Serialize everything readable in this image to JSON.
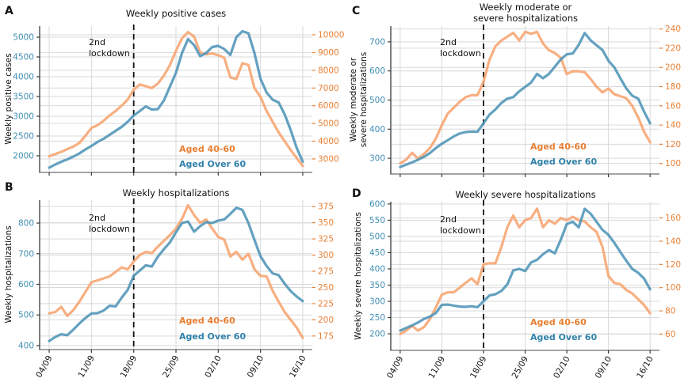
{
  "figure": {
    "background": "#ffffff",
    "grid_color": "#d9d9d9",
    "left_spine_color": "#3a3a3a",
    "bottom_spine_color": "#6e6e6e",
    "tick_mark_color": "#3a3a3a",
    "text_color": "#111111",
    "lockdown_line_color": "#111111",
    "annotation_text": "2nd\nlockdown",
    "x_tick_labels": [
      "04/09",
      "11/09",
      "18/09",
      "25/09",
      "02/10",
      "09/10",
      "16/10"
    ],
    "left_tick_label_color": "#3f8db3",
    "right_tick_label_color": "#e87f33",
    "legend": [
      {
        "label": "Aged 40-60",
        "text_color": "#e87f33"
      },
      {
        "label": "Aged Over 60",
        "text_color": "#2f81a9"
      }
    ],
    "series_line_colors": {
      "aged_40_60": "#f7a470",
      "aged_over_60": "#4e94b7"
    }
  },
  "chart_data": [
    {
      "panel": "A",
      "type": "line",
      "title": "Weekly positive cases",
      "ylabel": "Weekly positive cases",
      "n_points": 43,
      "x_tick_indices": [
        0,
        7,
        14,
        21,
        28,
        35,
        42
      ],
      "x_tick_labels": [
        "04/09",
        "11/09",
        "18/09",
        "25/09",
        "02/10",
        "09/10",
        "16/10"
      ],
      "show_x_tick_labels": false,
      "lockdown_x_index": 14,
      "left_axis": {
        "series": "Aged Over 60",
        "ticks": [
          2000,
          2500,
          3000,
          3500,
          4000,
          4500,
          5000
        ],
        "ylim": [
          1580,
          5280
        ]
      },
      "right_axis": {
        "series": "Aged 40-60",
        "ticks": [
          3000,
          4000,
          5000,
          6000,
          7000,
          8000,
          9000,
          10000
        ],
        "ylim": [
          2240,
          10490
        ]
      },
      "series": [
        {
          "name": "Aged 40-60",
          "axis": "right",
          "color_key": "aged_40_60",
          "values": [
            3150,
            3280,
            3400,
            3550,
            3700,
            3900,
            4300,
            4750,
            4900,
            5150,
            5450,
            5700,
            6000,
            6350,
            6900,
            7200,
            7100,
            7000,
            7250,
            7700,
            8300,
            9100,
            9800,
            10150,
            9900,
            9000,
            8900,
            8950,
            8850,
            8700,
            7600,
            7500,
            8400,
            8300,
            7000,
            6500,
            5700,
            5100,
            4500,
            4000,
            3500,
            3050,
            2600
          ]
        },
        {
          "name": "Aged Over 60",
          "axis": "left",
          "color_key": "aged_over_60",
          "values": [
            1700,
            1780,
            1850,
            1910,
            1980,
            2060,
            2160,
            2250,
            2350,
            2430,
            2530,
            2630,
            2730,
            2860,
            3020,
            3130,
            3250,
            3170,
            3180,
            3400,
            3750,
            4100,
            4600,
            4950,
            4800,
            4520,
            4600,
            4750,
            4780,
            4700,
            4550,
            5000,
            5150,
            5100,
            4600,
            3950,
            3600,
            3420,
            3350,
            3050,
            2650,
            2200,
            1850
          ]
        }
      ]
    },
    {
      "panel": "B",
      "type": "line",
      "title": "Weekly hospitalizations",
      "ylabel": "Weekly hospitalizations",
      "n_points": 43,
      "x_tick_indices": [
        0,
        7,
        14,
        21,
        28,
        35,
        42
      ],
      "x_tick_labels": [
        "04/09",
        "11/09",
        "18/09",
        "25/09",
        "02/10",
        "09/10",
        "16/10"
      ],
      "show_x_tick_labels": true,
      "lockdown_x_index": 14,
      "left_axis": {
        "series": "Aged Over 60",
        "ticks": [
          400,
          500,
          600,
          700,
          800
        ],
        "ylim": [
          387,
          875
        ]
      },
      "right_axis": {
        "series": "Aged 40-60",
        "ticks": [
          175,
          200,
          225,
          250,
          275,
          300,
          325,
          350,
          375
        ],
        "ylim": [
          154,
          385
        ]
      },
      "series": [
        {
          "name": "Aged 40-60",
          "axis": "right",
          "color_key": "aged_40_60",
          "values": [
            210,
            212,
            220,
            206,
            215,
            228,
            243,
            258,
            261,
            264,
            267,
            274,
            281,
            278,
            290,
            300,
            305,
            303,
            313,
            322,
            331,
            341,
            356,
            377,
            362,
            350,
            355,
            341,
            328,
            324,
            298,
            305,
            293,
            302,
            278,
            268,
            267,
            245,
            228,
            212,
            200,
            188,
            172
          ]
        },
        {
          "name": "Aged Over 60",
          "axis": "left",
          "color_key": "aged_over_60",
          "values": [
            415,
            428,
            437,
            434,
            452,
            472,
            490,
            505,
            506,
            514,
            530,
            528,
            556,
            582,
            628,
            645,
            662,
            658,
            690,
            715,
            737,
            770,
            800,
            805,
            772,
            790,
            803,
            800,
            808,
            812,
            830,
            850,
            843,
            800,
            745,
            692,
            660,
            636,
            630,
            602,
            578,
            560,
            545
          ]
        }
      ]
    },
    {
      "panel": "C",
      "type": "line",
      "title": "Weekly moderate or\nsevere hospitalizations",
      "ylabel": "Weekly moderate or\nsevere hospitalizations",
      "n_points": 43,
      "x_tick_indices": [
        0,
        7,
        14,
        21,
        28,
        35,
        42
      ],
      "x_tick_labels": [
        "04/09",
        "11/09",
        "18/09",
        "25/09",
        "02/10",
        "09/10",
        "16/10"
      ],
      "show_x_tick_labels": false,
      "lockdown_x_index": 14,
      "left_axis": {
        "series": "Aged Over 60",
        "ticks": [
          300,
          400,
          500,
          600,
          700
        ],
        "ylim": [
          246,
          754
        ]
      },
      "right_axis": {
        "series": "Aged 40-60",
        "ticks": [
          100,
          120,
          140,
          160,
          180,
          200,
          220,
          240
        ],
        "ylim": [
          89,
          243
        ]
      },
      "series": [
        {
          "name": "Aged 40-60",
          "axis": "right",
          "color_key": "aged_40_60",
          "values": [
            100,
            104,
            111,
            105,
            110,
            116,
            126,
            140,
            152,
            158,
            164,
            169,
            171,
            171,
            185,
            208,
            222,
            228,
            232,
            236,
            228,
            237,
            235,
            237,
            225,
            218,
            215,
            210,
            193,
            196,
            196,
            195,
            188,
            180,
            174,
            178,
            172,
            170,
            168,
            160,
            148,
            133,
            122
          ]
        },
        {
          "name": "Aged Over 60",
          "axis": "left",
          "color_key": "aged_over_60",
          "values": [
            270,
            278,
            286,
            295,
            305,
            318,
            335,
            350,
            362,
            375,
            385,
            390,
            392,
            391,
            420,
            450,
            468,
            490,
            505,
            510,
            530,
            545,
            560,
            590,
            575,
            590,
            615,
            640,
            657,
            660,
            690,
            730,
            705,
            688,
            672,
            635,
            612,
            575,
            540,
            515,
            505,
            460,
            420
          ]
        }
      ]
    },
    {
      "panel": "D",
      "type": "line",
      "title": "Weekly severe hospitalizations",
      "ylabel": "Weekly severe hospitalizations",
      "n_points": 43,
      "x_tick_indices": [
        0,
        7,
        14,
        21,
        28,
        35,
        42
      ],
      "x_tick_labels": [
        "04/09",
        "11/09",
        "18/09",
        "25/09",
        "02/10",
        "09/10",
        "16/10"
      ],
      "show_x_tick_labels": true,
      "lockdown_x_index": 14,
      "left_axis": {
        "series": "Aged Over 60",
        "ticks": [
          200,
          250,
          300,
          350,
          400,
          450,
          500,
          550,
          600
        ],
        "ylim": [
          149,
          607
        ]
      },
      "right_axis": {
        "series": "Aged 40-60",
        "ticks": [
          60,
          80,
          100,
          120,
          140,
          160
        ],
        "ylim": [
          46,
          174
        ]
      },
      "series": [
        {
          "name": "Aged 40-60",
          "axis": "right",
          "color_key": "aged_40_60",
          "values": [
            60,
            63,
            67,
            63,
            66,
            73,
            83,
            94,
            96,
            96,
            100,
            104,
            108,
            103,
            120,
            121,
            121,
            135,
            152,
            162,
            152,
            158,
            160,
            168,
            152,
            158,
            155,
            160,
            158,
            161,
            158,
            157,
            152,
            148,
            135,
            110,
            104,
            103,
            98,
            95,
            90,
            85,
            78
          ]
        },
        {
          "name": "Aged Over 60",
          "axis": "left",
          "color_key": "aged_over_60",
          "values": [
            210,
            218,
            226,
            235,
            246,
            253,
            264,
            289,
            290,
            287,
            284,
            283,
            285,
            282,
            300,
            318,
            322,
            332,
            352,
            395,
            400,
            393,
            420,
            428,
            445,
            458,
            448,
            490,
            538,
            545,
            528,
            585,
            570,
            545,
            520,
            505,
            480,
            452,
            425,
            400,
            388,
            370,
            337
          ]
        }
      ]
    }
  ]
}
